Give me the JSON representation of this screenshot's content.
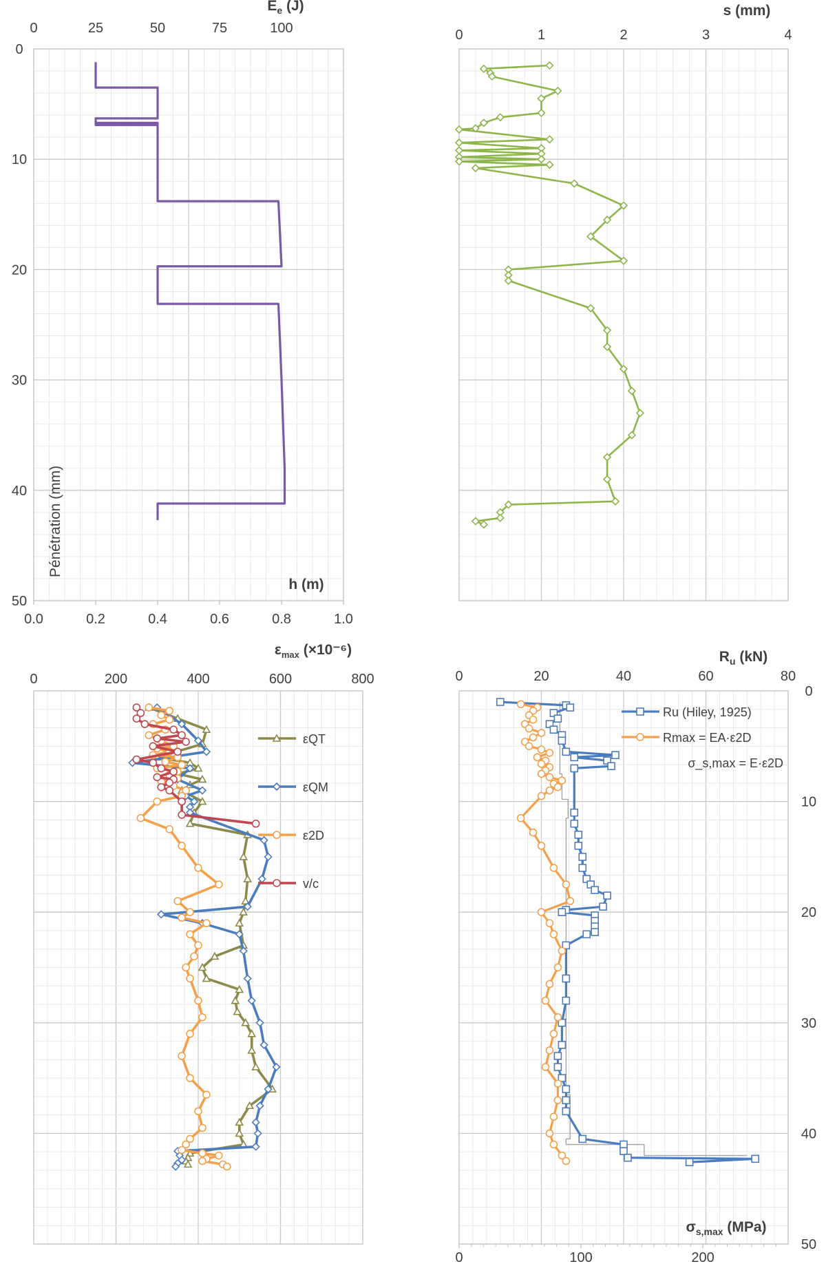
{
  "colors": {
    "purple": "#7a5aa6",
    "green": "#8db54a",
    "olive": "#8c8a4a",
    "blue": "#4a7cbf",
    "orange": "#f4a04a",
    "red": "#c0464f",
    "gray": "#a6a6a6"
  },
  "chart_data": [
    {
      "id": "hammer-drop",
      "type": "line",
      "title": "",
      "xlabel": "h (m)",
      "x2label_main": "E",
      "x2label_sub": "e",
      "x2label_unit": " (J)",
      "ylabel": "Pénétration  (mm)",
      "xlim": [
        0,
        1.0
      ],
      "x2lim": [
        0,
        100
      ],
      "ylim": [
        0,
        50
      ],
      "xticks": [
        "0.0",
        "0.2",
        "0.4",
        "0.6",
        "0.8",
        "1.0"
      ],
      "x2ticks": [
        "0",
        "25",
        "50",
        "75",
        "100"
      ],
      "yticks": [
        "0",
        "10",
        "20",
        "30",
        "40",
        "50"
      ],
      "series": [
        {
          "name": "h",
          "color": "purple",
          "x": [
            0.2,
            0.2,
            0.4,
            0.4,
            0.2,
            0.2,
            0.4,
            0.4,
            0.2,
            0.2,
            0.4,
            0.4,
            0.79,
            0.8,
            0.4,
            0.4,
            0.79,
            0.8,
            0.81,
            0.81,
            0.4,
            0.4
          ],
          "y": [
            1.2,
            3.5,
            3.5,
            6.3,
            6.3,
            6.7,
            6.7,
            6.8,
            6.8,
            6.9,
            6.9,
            13.8,
            13.8,
            19.7,
            19.7,
            23.1,
            23.1,
            30,
            38,
            41.2,
            41.2,
            42.7
          ]
        }
      ]
    },
    {
      "id": "set-per-blow",
      "type": "line",
      "title": "",
      "x2label": "s (mm)",
      "x2lim": [
        0,
        4
      ],
      "x2ticks": [
        "0",
        "1",
        "2",
        "3",
        "4"
      ],
      "ylim": [
        0,
        50
      ],
      "series": [
        {
          "name": "s",
          "color": "green",
          "marker": "diamond",
          "x": [
            1.1,
            0.3,
            0.38,
            0.4,
            1.2,
            1.0,
            1.0,
            0.5,
            0.3,
            0.2,
            0.0,
            1.1,
            0.0,
            1.0,
            0.0,
            1.0,
            0.0,
            1.0,
            0.0,
            1.1,
            0.2,
            1.4,
            2.0,
            1.8,
            1.6,
            2.0,
            0.6,
            0.6,
            0.6,
            1.6,
            1.8,
            1.8,
            2.0,
            2.1,
            2.2,
            2.1,
            1.8,
            1.8,
            1.9,
            0.6,
            0.5,
            0.5,
            0.2,
            0.3
          ],
          "y": [
            1.5,
            1.8,
            2.2,
            2.5,
            3.8,
            4.5,
            5.8,
            6.2,
            6.7,
            7.2,
            7.3,
            8.2,
            8.5,
            9.0,
            9.2,
            9.5,
            9.8,
            10.0,
            10.2,
            10.5,
            10.8,
            12.2,
            14.2,
            15.5,
            17.0,
            19.2,
            20.0,
            20.5,
            21.0,
            23.5,
            25.5,
            27.0,
            29.0,
            31.0,
            33.0,
            35.0,
            37.0,
            39.0,
            41.0,
            41.3,
            42.0,
            42.5,
            42.8,
            43.1
          ]
        }
      ]
    },
    {
      "id": "strain",
      "type": "line",
      "title": "",
      "x2label_main": "ε",
      "x2label_sub": "max",
      "x2label_unit": " (×10⁻⁶)",
      "x2lim": [
        0,
        800
      ],
      "x2ticks": [
        "0",
        "200",
        "400",
        "600",
        "800"
      ],
      "ylim": [
        0,
        50
      ],
      "legend": [
        "εQT",
        "εQM",
        "ε2D",
        "v/c"
      ],
      "series": [
        {
          "name": "εQT",
          "color": "olive",
          "marker": "triangle",
          "x": [
            280,
            350,
            420,
            410,
            300,
            380,
            400,
            350,
            410,
            380,
            360,
            410,
            390,
            380,
            520,
            510,
            520,
            515,
            510,
            500,
            510,
            440,
            410,
            420,
            500,
            490,
            495,
            515,
            530,
            530,
            540,
            580,
            525,
            500,
            500,
            510,
            380,
            375,
            370,
            375
          ],
          "y": [
            1.5,
            2.5,
            3.5,
            4.8,
            6.0,
            6.5,
            7.0,
            7.5,
            8.0,
            8.5,
            9.0,
            10.0,
            11.0,
            12.0,
            13.0,
            15.0,
            17.0,
            19.0,
            20.0,
            21.0,
            23.0,
            24.0,
            25.0,
            26.0,
            27.0,
            28.0,
            29.0,
            30.0,
            31.0,
            32.5,
            34.0,
            36.0,
            37.5,
            39.0,
            40.0,
            41.0,
            41.8,
            42.2,
            42.5,
            42.8
          ]
        },
        {
          "name": "εQM",
          "color": "blue",
          "marker": "diamond",
          "x": [
            300,
            360,
            400,
            420,
            240,
            380,
            350,
            410,
            370,
            390,
            380,
            380,
            560,
            570,
            555,
            520,
            310,
            410,
            500,
            510,
            520,
            530,
            550,
            560,
            590,
            570,
            550,
            540,
            545,
            540,
            350,
            355,
            360,
            350,
            345
          ],
          "y": [
            1.5,
            3.0,
            4.5,
            5.5,
            6.5,
            7.0,
            8.0,
            9.0,
            9.5,
            10.0,
            10.5,
            11.0,
            13.5,
            15.0,
            17.0,
            19.5,
            20.2,
            21.0,
            22.0,
            23.5,
            26.0,
            28.0,
            30.0,
            32.0,
            34.0,
            36.0,
            37.5,
            39.0,
            40.0,
            41.2,
            41.6,
            42.0,
            42.4,
            42.7,
            43.0
          ],
          "note": "partial: some values clamped"
        },
        {
          "name": "ε2D",
          "color": "orange",
          "marker": "circle",
          "x": [
            280,
            330,
            310,
            330,
            290,
            320,
            280,
            310,
            340,
            300,
            330,
            290,
            350,
            320,
            360,
            300,
            350,
            330,
            350,
            310,
            340,
            370,
            360,
            300,
            260,
            330,
            360,
            400,
            450,
            350,
            380,
            360,
            420,
            380,
            400,
            390,
            370,
            380,
            400,
            410,
            380,
            360,
            380,
            420,
            400,
            410,
            380,
            370,
            360,
            410,
            450,
            420,
            410,
            460,
            470
          ],
          "y": [
            1.5,
            1.8,
            2.2,
            2.6,
            3.0,
            3.5,
            4.0,
            4.5,
            5.0,
            5.2,
            5.5,
            5.8,
            6.0,
            6.4,
            6.7,
            7.0,
            7.3,
            7.6,
            7.9,
            8.2,
            8.6,
            9.0,
            9.5,
            10.0,
            11.5,
            12.5,
            14.0,
            16.0,
            17.5,
            19.0,
            20.0,
            20.5,
            21.0,
            22.0,
            23.0,
            24.0,
            25.0,
            26.0,
            28.0,
            29.5,
            31.0,
            33.0,
            35.0,
            36.5,
            38.0,
            39.5,
            40.5,
            41.0,
            41.5,
            41.8,
            42.0,
            42.3,
            42.5,
            42.8,
            43.0
          ]
        },
        {
          "name": "v/c",
          "color": "red",
          "marker": "circle",
          "x": [
            250,
            260,
            250,
            270,
            340,
            360,
            300,
            370,
            290,
            350,
            250,
            290,
            310,
            340,
            300,
            340,
            330,
            310,
            330,
            360,
            360,
            540
          ],
          "y": [
            1.5,
            2.0,
            2.5,
            3.0,
            3.5,
            4.0,
            4.3,
            4.6,
            5.0,
            5.5,
            6.2,
            6.5,
            7.0,
            7.3,
            7.8,
            8.0,
            8.3,
            8.7,
            9.0,
            10.0,
            11.2,
            12.0
          ]
        }
      ]
    },
    {
      "id": "resistance",
      "type": "line",
      "title": "",
      "x2label_main": "R",
      "x2label_sub": "u",
      "x2label_unit": " (kN)",
      "xlabel_main": "σ",
      "xlabel_sub": "s,max",
      "xlabel_unit": " (MPa)",
      "x2lim": [
        0,
        80
      ],
      "xlim": [
        0,
        270
      ],
      "ylim": [
        0,
        50
      ],
      "x2ticks": [
        "0",
        "20",
        "40",
        "60",
        "80"
      ],
      "xticks": [
        "0",
        "100",
        "200"
      ],
      "yticks": [
        "0",
        "10",
        "20",
        "30",
        "40",
        "50"
      ],
      "legend": [
        "Ru (Hiley, 1925)",
        "Rmax = EA·ε2D",
        "σ_s,max = E·ε2D"
      ],
      "series": [
        {
          "name": "Ru (Hiley, 1925)",
          "color": "blue",
          "marker": "square",
          "x": [
            10,
            26,
            27,
            23,
            24,
            22,
            23,
            25,
            25,
            26,
            38,
            28,
            36,
            37,
            28,
            28,
            28,
            29,
            29,
            30,
            30,
            31,
            32,
            33,
            36,
            35,
            26,
            25,
            33,
            33,
            33,
            33,
            31,
            26,
            26,
            26,
            25,
            25,
            24,
            24,
            25,
            26,
            26,
            26,
            30,
            40,
            40,
            41,
            72,
            56
          ],
          "y": [
            1.0,
            1.3,
            1.5,
            2.0,
            2.5,
            3.0,
            3.5,
            4.0,
            4.5,
            5.5,
            5.8,
            6.0,
            6.3,
            6.8,
            7.0,
            11.0,
            12.0,
            13.0,
            14.0,
            15.0,
            16.0,
            17.0,
            17.5,
            18.0,
            18.5,
            19.5,
            19.8,
            20.0,
            20.3,
            20.8,
            21.3,
            21.8,
            22.0,
            23.0,
            26.0,
            28.0,
            30.0,
            32.0,
            33.0,
            34.0,
            35.0,
            36.0,
            37.0,
            38.0,
            40.5,
            41.0,
            41.6,
            42.2,
            42.3,
            42.6
          ]
        },
        {
          "name": "Rmax = EA·ε2D",
          "color": "orange",
          "marker": "circle",
          "x": [
            15,
            19,
            18,
            17,
            18,
            16,
            17,
            20,
            18,
            16,
            17,
            20,
            22,
            19,
            21,
            20,
            22,
            21,
            20,
            22,
            25,
            23,
            24,
            22,
            20,
            15,
            18,
            20,
            23,
            26,
            27,
            20,
            22,
            23,
            25,
            24,
            22,
            21,
            24,
            23,
            22,
            21,
            24,
            24,
            23,
            22,
            23,
            25,
            26
          ],
          "y": [
            1.2,
            1.5,
            1.8,
            2.2,
            2.6,
            3.0,
            3.4,
            3.8,
            4.2,
            4.6,
            5.0,
            5.3,
            5.6,
            6.0,
            6.3,
            6.6,
            6.9,
            7.2,
            7.5,
            7.8,
            8.1,
            8.4,
            8.7,
            9.0,
            9.5,
            11.5,
            12.8,
            14.0,
            16.0,
            17.5,
            19.0,
            20.0,
            21.0,
            22.0,
            23.5,
            25.0,
            26.5,
            28.0,
            29.5,
            31.0,
            32.5,
            34.0,
            35.5,
            37.0,
            38.5,
            40.0,
            41.0,
            42.0,
            42.5
          ]
        },
        {
          "name": "σ_s,max = E·ε2D",
          "color": "gray",
          "marker": "none",
          "x": [
            24.5,
            24.5,
            25,
            25,
            26.5,
            26.5,
            26,
            26,
            27,
            27,
            26,
            26,
            45,
            45,
            70
          ],
          "y": [
            1.0,
            7.5,
            7.5,
            9.8,
            9.8,
            11.5,
            11.5,
            36.5,
            36.5,
            40.5,
            40.5,
            41.0,
            41.0,
            42.0,
            42.0
          ]
        }
      ]
    }
  ]
}
